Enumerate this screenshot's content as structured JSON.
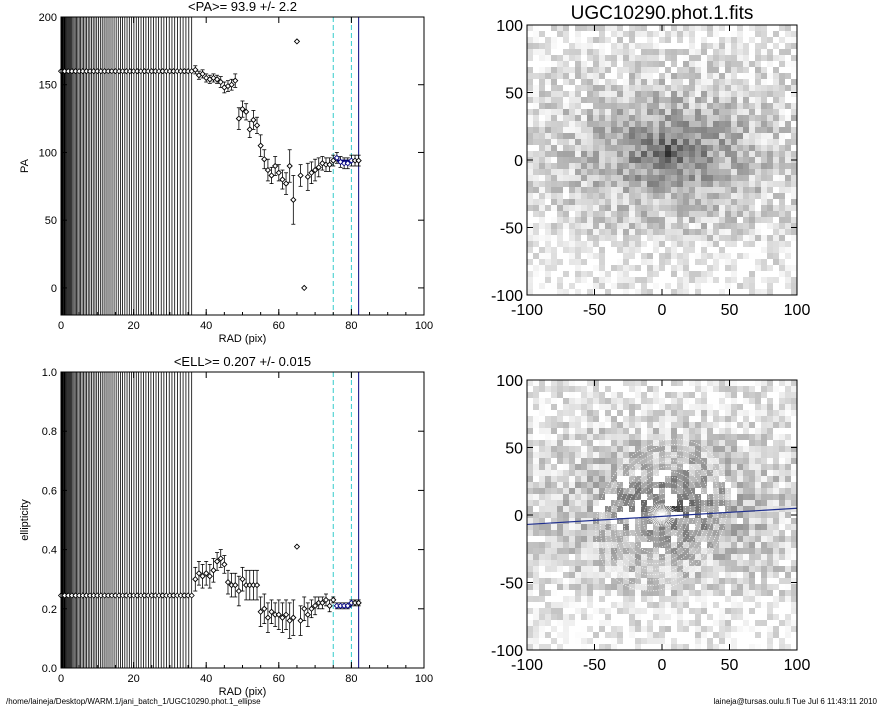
{
  "footer": {
    "path": "/home/laineja/Desktop/WARM.1/jani_batch_1/UGC10290.phot.1_ellipse",
    "user_time": "laineja@tursas.oulu.fi  Tue Jul  6 11:43:11 2010"
  },
  "chart_data": [
    {
      "type": "scatter",
      "title": "<PA>=  93.9 +/-   2.2",
      "xlabel": "RAD (pix)",
      "ylabel": "PA",
      "xlim": [
        0,
        100
      ],
      "ylim": [
        -20,
        200
      ],
      "xticks": [
        0,
        20,
        40,
        60,
        80,
        100
      ],
      "yticks": [
        0,
        50,
        100,
        150,
        200
      ],
      "vlines": [
        {
          "x": 75,
          "style": "dashed",
          "color": "#33cccc"
        },
        {
          "x": 80,
          "style": "dashed",
          "color": "#33cccc"
        },
        {
          "x": 82,
          "style": "solid",
          "color": "#000080"
        }
      ],
      "inner_radius_max": 36,
      "inner_value": 160,
      "series": [
        {
          "x": [
            37,
            38,
            39,
            40,
            41,
            42,
            43,
            44,
            45,
            46,
            47,
            48,
            49,
            50,
            51,
            52,
            53,
            54,
            55,
            56,
            57,
            58,
            59,
            60,
            61,
            62,
            63,
            64,
            65,
            66,
            67,
            68,
            69,
            70,
            71,
            72,
            73,
            74,
            75,
            76,
            77,
            78,
            79,
            80,
            81,
            82
          ],
          "y": [
            161,
            157,
            158,
            155,
            154,
            155,
            154,
            152,
            148,
            149,
            150,
            153,
            125,
            132,
            130,
            117,
            124,
            120,
            105,
            95,
            87,
            83,
            90,
            85,
            80,
            77,
            90,
            65,
            182,
            83,
            0,
            82,
            85,
            87,
            89,
            92,
            91,
            91,
            94,
            96,
            93,
            92,
            92,
            94,
            94,
            94
          ],
          "err": [
            3,
            3,
            3,
            3,
            3,
            3,
            3,
            4,
            4,
            4,
            4,
            5,
            8,
            6,
            6,
            6,
            7,
            6,
            8,
            7,
            8,
            6,
            7,
            6,
            7,
            8,
            12,
            18,
            0,
            8,
            0,
            10,
            8,
            8,
            7,
            5,
            5,
            5,
            4,
            4,
            4,
            4,
            4,
            4,
            4,
            4
          ]
        }
      ],
      "highlight": {
        "x_from": 76,
        "x_to": 80,
        "y": 94,
        "color": "#000080"
      }
    },
    {
      "type": "scatter",
      "title": "<ELL>= 0.207 +/-  0.015",
      "xlabel": "RAD (pix)",
      "ylabel": "ellipticity",
      "xlim": [
        0,
        100
      ],
      "ylim": [
        0,
        1
      ],
      "xticks": [
        0,
        20,
        40,
        60,
        80,
        100
      ],
      "yticks": [
        "0.0",
        "0.2",
        "0.4",
        "0.6",
        "0.8",
        "1.0"
      ],
      "vlines": [
        {
          "x": 75,
          "style": "dashed",
          "color": "#33cccc"
        },
        {
          "x": 80,
          "style": "dashed",
          "color": "#33cccc"
        },
        {
          "x": 82,
          "style": "solid",
          "color": "#000080"
        }
      ],
      "inner_radius_max": 36,
      "inner_value": 0.245,
      "series": [
        {
          "x": [
            37,
            38,
            39,
            40,
            41,
            42,
            43,
            44,
            45,
            46,
            47,
            48,
            49,
            50,
            51,
            52,
            53,
            54,
            55,
            56,
            57,
            58,
            59,
            60,
            61,
            62,
            63,
            64,
            65,
            66,
            67,
            68,
            69,
            70,
            71,
            72,
            73,
            74,
            75,
            76,
            77,
            78,
            79,
            80,
            81,
            82
          ],
          "y": [
            0.3,
            0.32,
            0.31,
            0.32,
            0.31,
            0.33,
            0.36,
            0.37,
            0.35,
            0.29,
            0.28,
            0.28,
            0.26,
            0.3,
            0.28,
            0.28,
            0.28,
            0.28,
            0.19,
            0.2,
            0.17,
            0.19,
            0.18,
            0.18,
            0.17,
            0.18,
            0.16,
            0.17,
            0.41,
            0.16,
            0.2,
            0.18,
            0.2,
            0.21,
            0.22,
            0.22,
            0.23,
            0.21,
            0.23,
            0.21,
            0.21,
            0.21,
            0.21,
            0.22,
            0.22,
            0.22
          ],
          "err": [
            0.04,
            0.04,
            0.04,
            0.04,
            0.04,
            0.04,
            0.03,
            0.03,
            0.03,
            0.04,
            0.04,
            0.04,
            0.05,
            0.04,
            0.05,
            0.05,
            0.05,
            0.05,
            0.05,
            0.05,
            0.05,
            0.04,
            0.04,
            0.05,
            0.05,
            0.05,
            0.06,
            0.06,
            0,
            0.05,
            0.04,
            0.04,
            0.03,
            0.03,
            0.02,
            0.02,
            0.02,
            0.02,
            0.01,
            0.01,
            0.01,
            0.01,
            0.01,
            0.01,
            0.01,
            0.01
          ]
        }
      ],
      "highlight": {
        "x_from": 76,
        "x_to": 80,
        "y": 0.207,
        "color": "#000080"
      }
    },
    {
      "type": "heatmap",
      "title": "UGC10290.phot.1.fits",
      "xlim": [
        -100,
        100
      ],
      "ylim": [
        -100,
        100
      ],
      "xticks": [
        -100,
        -50,
        0,
        50,
        100
      ],
      "yticks": [
        -100,
        -50,
        0,
        50,
        100
      ],
      "colormap": "grayscale-inverted"
    },
    {
      "type": "heatmap",
      "title": "",
      "xlim": [
        -100,
        100
      ],
      "ylim": [
        -100,
        100
      ],
      "xticks": [
        -100,
        -50,
        0,
        50,
        100
      ],
      "yticks": [
        -100,
        -50,
        0,
        50,
        100
      ],
      "colormap": "grayscale-inverted",
      "overlays": [
        "fitted-ellipses",
        "position-angle-line"
      ],
      "pa_line_color": "#1f2f8f"
    }
  ]
}
